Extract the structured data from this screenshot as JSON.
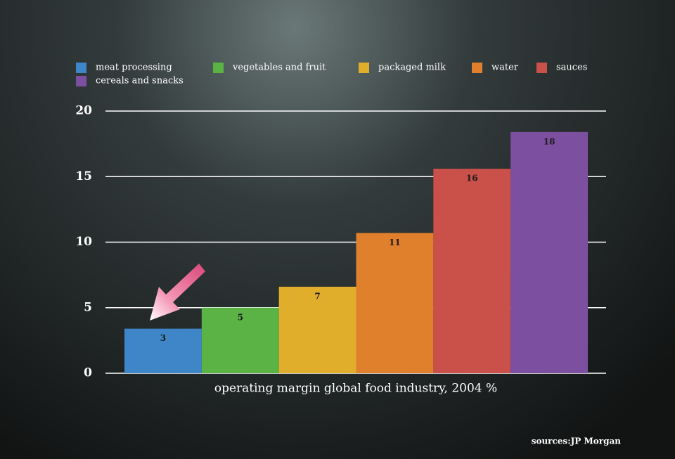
{
  "chart_data": {
    "type": "bar",
    "categories": [
      "meat processing",
      "vegetables and fruit",
      "packaged milk",
      "water",
      "sauces",
      "cereals and snacks"
    ],
    "values": [
      3.4,
      5,
      6.6,
      10.7,
      15.6,
      18.4
    ],
    "value_labels": [
      "3",
      "5",
      "7",
      "11",
      "16",
      "18"
    ],
    "colors": [
      "#3f86c8",
      "#5bb346",
      "#e1ae2b",
      "#e0802d",
      "#c9514a",
      "#7d4fa0"
    ],
    "ylim": [
      0,
      20
    ],
    "yticks": [
      0,
      5,
      10,
      15,
      20
    ],
    "grid": true,
    "legend": "top-left",
    "x_label": "operating margin global food industry, 2004 %",
    "source": "sources:JP Morgan"
  }
}
